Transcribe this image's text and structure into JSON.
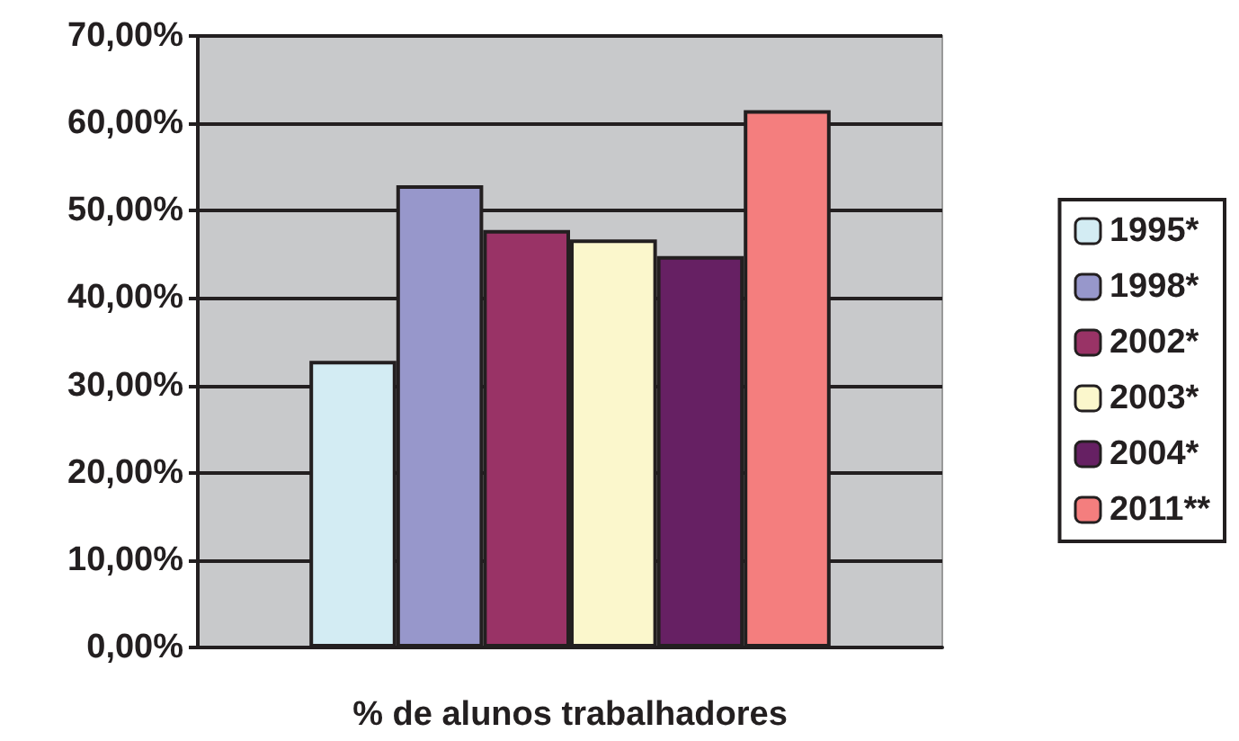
{
  "chart_data": {
    "type": "bar",
    "xlabel": "% de alunos trabalhadores",
    "categories": [
      null
    ],
    "series": [
      {
        "name": "1995*",
        "color": "#d3ecf3",
        "values": [
          32.8
        ]
      },
      {
        "name": "1998*",
        "color": "#9797cb",
        "values": [
          52.9
        ]
      },
      {
        "name": "2002*",
        "color": "#993366",
        "values": [
          47.8
        ]
      },
      {
        "name": "2003*",
        "color": "#fbf7cc",
        "values": [
          46.7
        ]
      },
      {
        "name": "2004*",
        "color": "#662063",
        "values": [
          44.8
        ]
      },
      {
        "name": "2011**",
        "color": "#f47e7e",
        "values": [
          61.5
        ]
      }
    ],
    "ylim": [
      0,
      70
    ],
    "yticks": [
      {
        "value": 0,
        "label": "0,00%"
      },
      {
        "value": 10,
        "label": "10,00%"
      },
      {
        "value": 20,
        "label": "20,00%"
      },
      {
        "value": 30,
        "label": "30,00%"
      },
      {
        "value": 40,
        "label": "40,00%"
      },
      {
        "value": 50,
        "label": "50,00%"
      },
      {
        "value": 60,
        "label": "60,00%"
      },
      {
        "value": 70,
        "label": "70,00%"
      }
    ],
    "grid": "y",
    "legend": "right"
  }
}
